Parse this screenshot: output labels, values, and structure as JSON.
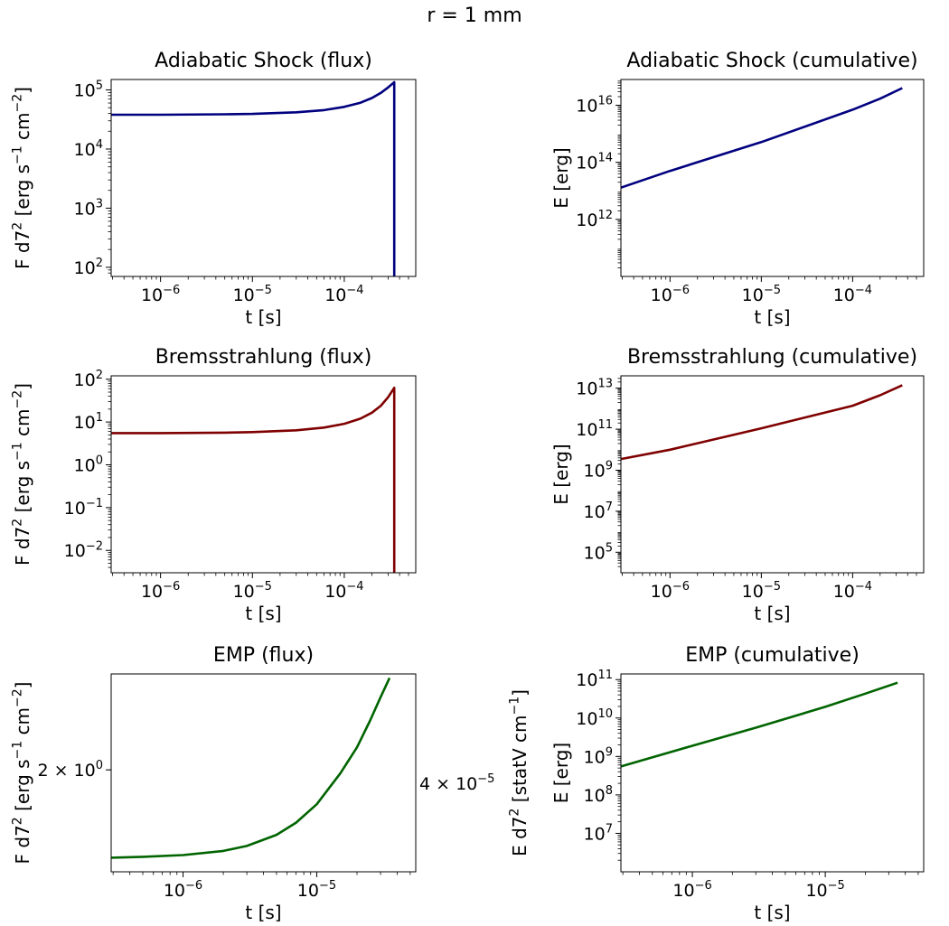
{
  "suptitle": "r = 1 mm",
  "chart_data": [
    {
      "id": "adiabatic-flux",
      "type": "line",
      "title": "Adiabatic Shock (flux)",
      "xlabel": "t  [s]",
      "ylabel": "F d7^2  [erg s^-1 cm^-2]",
      "xscale": "log",
      "yscale": "log",
      "xlim": [
        2.9e-07,
        0.0006
      ],
      "ylim": [
        70,
        150000
      ],
      "xticks": [
        1e-06,
        1e-05,
        0.0001
      ],
      "xticklabels": [
        "10^-6",
        "10^-5",
        "10^-4"
      ],
      "yticks": [
        100,
        1000,
        10000,
        100000
      ],
      "yticklabels": [
        "10^2",
        "10^3",
        "10^4",
        "10^5"
      ],
      "color": "#00007f",
      "series": [
        {
          "x": [
            2.9e-07,
            1e-06,
            5e-06,
            1e-05,
            3e-05,
            6e-05,
            0.0001,
            0.00015,
            0.0002,
            0.00025,
            0.0003,
            0.00035,
            0.00035,
            0.00035
          ],
          "y": [
            38000,
            38000,
            38700,
            39300,
            41800,
            45500,
            51700,
            60800,
            72800,
            89000,
            110000,
            135000,
            5000,
            60
          ]
        }
      ]
    },
    {
      "id": "adiabatic-cumulative",
      "type": "line",
      "title": "Adiabatic Shock (cumulative)",
      "xlabel": "t  [s]",
      "ylabel": "E  [erg]",
      "xscale": "log",
      "yscale": "log",
      "xlim": [
        2.9e-07,
        0.0006
      ],
      "ylim": [
        10000000000.0,
        8e+16
      ],
      "xticks": [
        1e-06,
        1e-05,
        0.0001
      ],
      "xticklabels": [
        "10^-6",
        "10^-5",
        "10^-4"
      ],
      "yticks": [
        1000000000000.0,
        100000000000000.0,
        1e+16
      ],
      "yticklabels": [
        "10^12",
        "10^14",
        "10^16"
      ],
      "color": "#00007f",
      "series": [
        {
          "x": [
            2.9e-07,
            1e-06,
            1e-05,
            0.0001,
            0.0002,
            0.00035
          ],
          "y": [
            13000000000000.0,
            50000000000000.0,
            510000000000000.0,
            7000000000000000.0,
            1.7e+16,
            4e+16
          ]
        }
      ]
    },
    {
      "id": "brems-flux",
      "type": "line",
      "title": "Bremsstrahlung (flux)",
      "xlabel": "t  [s]",
      "ylabel": "F d7^2  [erg s^-1 cm^-2]",
      "xscale": "log",
      "yscale": "log",
      "xlim": [
        2.9e-07,
        0.0006
      ],
      "ylim": [
        0.003,
        120
      ],
      "xticks": [
        1e-06,
        1e-05,
        0.0001
      ],
      "xticklabels": [
        "10^-6",
        "10^-5",
        "10^-4"
      ],
      "yticks": [
        0.01,
        0.1,
        1,
        10,
        100
      ],
      "yticklabels": [
        "10^-2",
        "10^-1",
        "10^0",
        "10^1",
        "10^2"
      ],
      "color": "#7f0000",
      "series": [
        {
          "x": [
            2.9e-07,
            1e-06,
            5e-06,
            1e-05,
            3e-05,
            6e-05,
            0.0001,
            0.00015,
            0.0002,
            0.00025,
            0.0003,
            0.00035,
            0.00035,
            0.00035
          ],
          "y": [
            5.5,
            5.5,
            5.65,
            5.8,
            6.4,
            7.4,
            9.1,
            12.0,
            16.5,
            24.0,
            38.0,
            63.0,
            1.0,
            0.003
          ]
        }
      ]
    },
    {
      "id": "brems-cumulative",
      "type": "line",
      "title": "Bremsstrahlung (cumulative)",
      "xlabel": "t  [s]",
      "ylabel": "E  [erg]",
      "xscale": "log",
      "yscale": "log",
      "xlim": [
        2.9e-07,
        0.0006
      ],
      "ylim": [
        10000.0,
        40000000000000.0
      ],
      "xticks": [
        1e-06,
        1e-05,
        0.0001
      ],
      "xticklabels": [
        "10^-6",
        "10^-5",
        "10^-4"
      ],
      "yticks": [
        100000.0,
        10000000.0,
        1000000000.0,
        100000000000.0,
        10000000000000.0
      ],
      "yticklabels": [
        "10^5",
        "10^7",
        "10^9",
        "10^11",
        "10^13"
      ],
      "color": "#7f0000",
      "series": [
        {
          "x": [
            2.9e-07,
            1e-06,
            1e-05,
            0.0001,
            0.0002,
            0.00035
          ],
          "y": [
            3500000000.0,
            10000000000.0,
            110000000000.0,
            1400000000000.0,
            4500000000000.0,
            14000000000000.0
          ]
        }
      ]
    },
    {
      "id": "emp-flux",
      "type": "line",
      "title": "EMP (flux)",
      "xlabel": "t  [s]",
      "ylabel": "F d7^2  [erg s^-1 cm^-2]",
      "ylabel_right": "E d7^2  [statV cm^-1]",
      "xscale": "log",
      "yscale": "log",
      "xlim": [
        2.9e-07,
        5.5e-05
      ],
      "ylim": [
        1.3,
        3.0
      ],
      "xticks": [
        1e-06,
        1e-05
      ],
      "xticklabels": [
        "10^-6",
        "10^-5"
      ],
      "yticks": [
        2.0
      ],
      "yticklabels": [
        "2 × 10^0"
      ],
      "right_yticklabels": [
        "4 × 10^-5"
      ],
      "color": "#006400",
      "series": [
        {
          "x": [
            2.9e-07,
            5e-07,
            1e-06,
            2e-06,
            3e-06,
            5e-06,
            7e-06,
            1e-05,
            1.5e-05,
            2e-05,
            2.5e-05,
            3e-05,
            3.5e-05
          ],
          "y": [
            1.38,
            1.385,
            1.395,
            1.42,
            1.45,
            1.52,
            1.6,
            1.73,
            1.97,
            2.2,
            2.46,
            2.72,
            2.95
          ]
        }
      ]
    },
    {
      "id": "emp-cumulative",
      "type": "line",
      "title": "EMP (cumulative)",
      "xlabel": "t  [s]",
      "ylabel": "E  [erg]",
      "xscale": "log",
      "yscale": "log",
      "xlim": [
        2.9e-07,
        5.5e-05
      ],
      "ylim": [
        1000000.0,
        140000000000.0
      ],
      "xticks": [
        1e-06,
        1e-05
      ],
      "xticklabels": [
        "10^-6",
        "10^-5"
      ],
      "yticks": [
        10000000.0,
        100000000.0,
        1000000000.0,
        10000000000.0,
        100000000000.0
      ],
      "yticklabels": [
        "10^7",
        "10^8",
        "10^9",
        "10^10",
        "10^11"
      ],
      "color": "#006400",
      "series": [
        {
          "x": [
            2.9e-07,
            1e-06,
            3e-06,
            1e-05,
            2e-05,
            3.5e-05
          ],
          "y": [
            550000000.0,
            1900000000.0,
            5600000000.0,
            19500000000.0,
            43000000000.0,
            83000000000.0
          ]
        }
      ]
    }
  ]
}
